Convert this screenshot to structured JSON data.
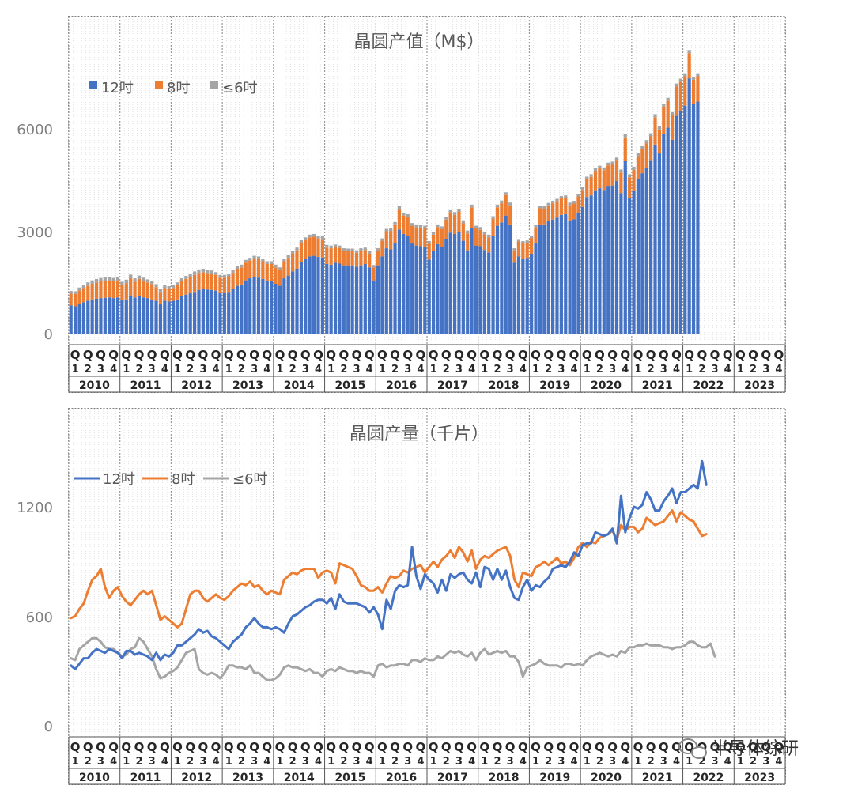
{
  "colors": {
    "s12": "#4472C4",
    "s8": "#ED7D31",
    "s6": "#A5A5A5"
  },
  "years": [
    "2010",
    "2011",
    "2012",
    "2013",
    "2014",
    "2015",
    "2016",
    "2017",
    "2018",
    "2019",
    "2020",
    "2021",
    "2022",
    "2023"
  ],
  "quarters": [
    "1",
    "2",
    "3",
    "4"
  ],
  "quarter_letter": "Q",
  "watermark": {
    "text": "半导体综研",
    "icon": "wechat-icon"
  },
  "chart_data": [
    {
      "type": "stacked-bar",
      "title": "晶圆产值（M$）",
      "legend": [
        "12吋",
        "8吋",
        "≤6吋"
      ],
      "legend_placement": "top-left",
      "yticks": [
        "0",
        "3000",
        "6000"
      ],
      "ylim": [
        0,
        9400
      ],
      "x_unit": "month",
      "x_start": "2010-01",
      "series": [
        {
          "name": "12吋",
          "values": [
            830,
            800,
            880,
            920,
            960,
            1000,
            1020,
            1040,
            1050,
            1060,
            1040,
            1060,
            980,
            1000,
            1120,
            1060,
            1100,
            1060,
            1040,
            1000,
            960,
            880,
            960,
            940,
            960,
            1000,
            1100,
            1140,
            1180,
            1220,
            1280,
            1300,
            1290,
            1280,
            1260,
            1200,
            1200,
            1220,
            1300,
            1400,
            1440,
            1560,
            1620,
            1660,
            1640,
            1600,
            1540,
            1540,
            1460,
            1400,
            1620,
            1700,
            1820,
            1900,
            2100,
            2180,
            2260,
            2280,
            2250,
            2230,
            2040,
            2020,
            2080,
            2050,
            2000,
            2000,
            2000,
            1960,
            2000,
            2040,
            1940,
            1560,
            2000,
            2260,
            2500,
            2470,
            2640,
            3050,
            2920,
            2860,
            2640,
            2580,
            2560,
            2540,
            2170,
            2420,
            2620,
            2540,
            2780,
            2960,
            2920,
            2980,
            2720,
            2440,
            3100,
            2580,
            2560,
            2450,
            2380,
            2860,
            3160,
            3260,
            3460,
            3200,
            2080,
            2260,
            2200,
            2220,
            2340,
            2640,
            3200,
            3200,
            3300,
            3340,
            3400,
            3480,
            3500,
            3300,
            3350,
            3540,
            3710,
            4000,
            4050,
            4200,
            4260,
            4210,
            4330,
            4340,
            4470,
            4120,
            5050,
            3980,
            4180,
            4520,
            4700,
            4860,
            5060,
            5540,
            5280,
            5850,
            6040,
            5680,
            6380,
            6520,
            6680,
            7480,
            6740,
            6800
          ]
        },
        {
          "name": "8吋",
          "values": [
            340,
            360,
            380,
            420,
            440,
            460,
            480,
            490,
            500,
            500,
            500,
            500,
            450,
            480,
            500,
            460,
            500,
            480,
            460,
            450,
            400,
            340,
            380,
            370,
            380,
            420,
            440,
            460,
            480,
            500,
            500,
            500,
            480,
            480,
            460,
            440,
            440,
            460,
            480,
            500,
            500,
            520,
            520,
            540,
            540,
            520,
            500,
            500,
            480,
            460,
            500,
            520,
            520,
            540,
            560,
            560,
            560,
            560,
            540,
            540,
            480,
            480,
            460,
            460,
            430,
            420,
            420,
            410,
            430,
            410,
            400,
            380,
            430,
            460,
            500,
            540,
            560,
            600,
            540,
            560,
            520,
            540,
            540,
            540,
            460,
            480,
            500,
            520,
            560,
            600,
            560,
            600,
            520,
            500,
            600,
            500,
            480,
            460,
            440,
            500,
            540,
            560,
            600,
            560,
            360,
            440,
            440,
            440,
            460,
            480,
            480,
            460,
            460,
            480,
            480,
            480,
            480,
            460,
            460,
            480,
            500,
            520,
            540,
            560,
            580,
            580,
            600,
            620,
            600,
            600,
            700,
            600,
            620,
            680,
            700,
            720,
            720,
            800,
            700,
            800,
            780,
            720,
            860,
            860,
            860,
            740,
            700,
            740
          ]
        },
        {
          "name": "≤6吋",
          "values": [
            80,
            80,
            90,
            90,
            100,
            100,
            100,
            100,
            100,
            100,
            90,
            90,
            90,
            100,
            110,
            100,
            100,
            100,
            90,
            90,
            90,
            80,
            80,
            80,
            80,
            80,
            80,
            90,
            90,
            100,
            100,
            100,
            90,
            90,
            80,
            80,
            80,
            80,
            80,
            80,
            80,
            80,
            80,
            80,
            80,
            80,
            80,
            80,
            80,
            80,
            80,
            80,
            80,
            80,
            80,
            80,
            80,
            80,
            80,
            80,
            80,
            80,
            70,
            70,
            70,
            70,
            70,
            70,
            70,
            70,
            70,
            70,
            70,
            70,
            70,
            70,
            70,
            80,
            80,
            80,
            80,
            80,
            80,
            80,
            80,
            80,
            80,
            80,
            80,
            80,
            80,
            80,
            80,
            80,
            80,
            80,
            80,
            80,
            80,
            80,
            80,
            80,
            80,
            80,
            60,
            70,
            70,
            70,
            70,
            70,
            70,
            70,
            70,
            70,
            70,
            70,
            70,
            80,
            80,
            80,
            80,
            80,
            80,
            80,
            80,
            80,
            80,
            80,
            90,
            90,
            90,
            90,
            90,
            90,
            90,
            90,
            90,
            90,
            90,
            90,
            90,
            90,
            90,
            90,
            90,
            90,
            90,
            90
          ]
        }
      ]
    },
    {
      "type": "line",
      "title": "晶圆产量（千片）",
      "legend": [
        "12吋",
        "8吋",
        "≤6吋"
      ],
      "legend_placement": "top-left",
      "yticks": [
        "0",
        "600",
        "1200"
      ],
      "ylim": [
        0,
        1760
      ],
      "x_unit": "month",
      "x_start": "2010-01",
      "series": [
        {
          "name": "12吋",
          "values": [
            330,
            310,
            340,
            370,
            370,
            400,
            420,
            410,
            400,
            420,
            410,
            400,
            370,
            410,
            410,
            390,
            400,
            390,
            380,
            360,
            400,
            360,
            390,
            380,
            400,
            440,
            440,
            460,
            480,
            500,
            530,
            510,
            520,
            490,
            480,
            460,
            440,
            420,
            460,
            480,
            500,
            540,
            560,
            590,
            560,
            540,
            540,
            530,
            540,
            530,
            510,
            560,
            600,
            610,
            630,
            650,
            660,
            680,
            690,
            690,
            670,
            700,
            640,
            720,
            680,
            670,
            670,
            670,
            660,
            650,
            620,
            650,
            610,
            530,
            690,
            640,
            740,
            770,
            760,
            770,
            980,
            820,
            750,
            830,
            800,
            780,
            730,
            800,
            740,
            830,
            810,
            830,
            840,
            800,
            780,
            840,
            760,
            870,
            860,
            800,
            860,
            800,
            850,
            760,
            700,
            690,
            760,
            800,
            740,
            770,
            760,
            790,
            810,
            860,
            870,
            880,
            870,
            900,
            950,
            930,
            990,
            1000,
            1000,
            1060,
            1050,
            1040,
            1050,
            1080,
            1000,
            1260,
            1060,
            1140,
            1200,
            1190,
            1210,
            1280,
            1240,
            1180,
            1180,
            1230,
            1260,
            1300,
            1220,
            1280,
            1280,
            1300,
            1320,
            1300,
            1450,
            1320
          ]
        },
        {
          "name": "8吋",
          "values": [
            590,
            600,
            640,
            670,
            740,
            800,
            820,
            860,
            760,
            700,
            740,
            760,
            710,
            680,
            660,
            690,
            720,
            740,
            720,
            740,
            660,
            580,
            600,
            580,
            560,
            540,
            560,
            640,
            720,
            740,
            740,
            700,
            680,
            700,
            720,
            700,
            690,
            710,
            740,
            760,
            780,
            770,
            790,
            760,
            770,
            740,
            720,
            740,
            730,
            720,
            800,
            820,
            840,
            830,
            850,
            860,
            860,
            860,
            810,
            840,
            850,
            840,
            780,
            890,
            880,
            870,
            860,
            820,
            770,
            760,
            740,
            740,
            760,
            730,
            780,
            820,
            810,
            820,
            850,
            840,
            860,
            870,
            880,
            840,
            870,
            900,
            870,
            910,
            930,
            960,
            920,
            980,
            950,
            900,
            960,
            860,
            910,
            930,
            920,
            940,
            960,
            970,
            980,
            930,
            800,
            760,
            840,
            830,
            820,
            870,
            880,
            900,
            880,
            900,
            920,
            890,
            900,
            880,
            920,
            980,
            1000,
            980,
            1010,
            1000,
            1030,
            1040,
            1050,
            1070,
            1020,
            1100,
            1070,
            1090,
            1090,
            1060,
            1080,
            1140,
            1120,
            1100,
            1110,
            1120,
            1150,
            1180,
            1120,
            1170,
            1150,
            1130,
            1120,
            1080,
            1040,
            1050
          ]
        },
        {
          "name": "≤6吋",
          "values": [
            370,
            360,
            420,
            440,
            460,
            480,
            480,
            460,
            430,
            420,
            420,
            400,
            380,
            390,
            420,
            430,
            480,
            460,
            420,
            380,
            310,
            260,
            270,
            290,
            300,
            320,
            360,
            400,
            410,
            420,
            310,
            290,
            280,
            290,
            280,
            260,
            290,
            330,
            330,
            320,
            320,
            310,
            330,
            290,
            290,
            270,
            250,
            250,
            260,
            280,
            320,
            330,
            320,
            320,
            310,
            300,
            310,
            290,
            290,
            270,
            300,
            310,
            300,
            320,
            310,
            300,
            300,
            290,
            300,
            290,
            290,
            270,
            330,
            340,
            320,
            330,
            330,
            340,
            340,
            330,
            360,
            360,
            350,
            370,
            360,
            360,
            380,
            370,
            390,
            410,
            400,
            410,
            390,
            380,
            400,
            360,
            400,
            420,
            390,
            400,
            410,
            400,
            410,
            380,
            380,
            350,
            270,
            320,
            330,
            340,
            360,
            340,
            330,
            330,
            330,
            320,
            340,
            340,
            330,
            340,
            330,
            360,
            380,
            390,
            400,
            390,
            380,
            390,
            380,
            410,
            400,
            430,
            430,
            440,
            440,
            450,
            440,
            440,
            440,
            430,
            430,
            420,
            430,
            430,
            440,
            460,
            460,
            440,
            430,
            430,
            450,
            380
          ]
        }
      ]
    }
  ]
}
